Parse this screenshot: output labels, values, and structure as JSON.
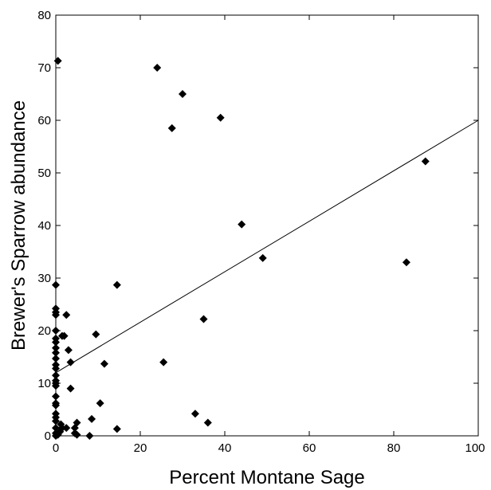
{
  "chart_data": {
    "type": "scatter",
    "title": "",
    "xlabel": "Percent Montane Sage",
    "ylabel": "Brewer's Sparrow abundance",
    "xlim": [
      0,
      100
    ],
    "ylim": [
      0,
      80
    ],
    "xticks": [
      0,
      20,
      40,
      60,
      80,
      100
    ],
    "yticks": [
      0,
      10,
      20,
      30,
      40,
      50,
      60,
      70,
      80
    ],
    "grid": false,
    "legend": "none",
    "marker": "diamond",
    "colors": {
      "marker": "#000000",
      "line": "#000000",
      "axes": "#000000"
    },
    "series": [
      {
        "points": [
          [
            0.5,
            71.3
          ],
          [
            0,
            28.7
          ],
          [
            0,
            24.2
          ],
          [
            0,
            23.5
          ],
          [
            0,
            23.0
          ],
          [
            0,
            20.0
          ],
          [
            0,
            18.5
          ],
          [
            0,
            17.8
          ],
          [
            0,
            16.7
          ],
          [
            0,
            15.8
          ],
          [
            0,
            14.7
          ],
          [
            0,
            13.5
          ],
          [
            0,
            12.8
          ],
          [
            0,
            11.5
          ],
          [
            0,
            10.5
          ],
          [
            0,
            10.0
          ],
          [
            0,
            9.5
          ],
          [
            0,
            7.5
          ],
          [
            0,
            6.2
          ],
          [
            0,
            5.8
          ],
          [
            0,
            4.2
          ],
          [
            0,
            3.5
          ],
          [
            0,
            2.8
          ],
          [
            0,
            1.5
          ],
          [
            0,
            0.5
          ],
          [
            0,
            0.0
          ],
          [
            0.5,
            0.2
          ],
          [
            1.0,
            0.8
          ],
          [
            1.2,
            2.2
          ],
          [
            1.5,
            1.5
          ],
          [
            2.0,
            19.0
          ],
          [
            2.5,
            23.0
          ],
          [
            3.0,
            16.3
          ],
          [
            3.5,
            14.0
          ],
          [
            3.5,
            9.0
          ],
          [
            1.5,
            19.0
          ],
          [
            2.5,
            1.5
          ],
          [
            4.5,
            1.5
          ],
          [
            5.0,
            2.5
          ],
          [
            4.5,
            0.5
          ],
          [
            5.0,
            0.2
          ],
          [
            8.0,
            0.0
          ],
          [
            8.5,
            3.2
          ],
          [
            9.5,
            19.3
          ],
          [
            10.5,
            6.2
          ],
          [
            11.5,
            13.7
          ],
          [
            14.5,
            28.7
          ],
          [
            14.5,
            1.3
          ],
          [
            24.0,
            70.0
          ],
          [
            25.5,
            14.0
          ],
          [
            27.5,
            58.5
          ],
          [
            30.0,
            65.0
          ],
          [
            33.0,
            4.2
          ],
          [
            35.0,
            22.2
          ],
          [
            36.0,
            2.5
          ],
          [
            39.0,
            60.5
          ],
          [
            44.0,
            40.2
          ],
          [
            49.0,
            33.8
          ],
          [
            83.0,
            33.0
          ],
          [
            87.5,
            52.2
          ]
        ]
      }
    ],
    "trendline": {
      "x": [
        0,
        100
      ],
      "y": [
        12.0,
        60.0
      ]
    }
  }
}
